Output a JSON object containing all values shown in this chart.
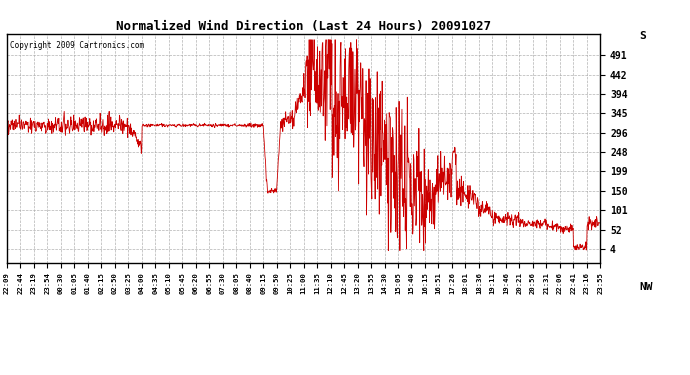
{
  "title": "Normalized Wind Direction (Last 24 Hours) 20091027",
  "copyright": "Copyright 2009 Cartronics.com",
  "line_color": "#cc0000",
  "background_color": "#ffffff",
  "plot_bg_color": "#ffffff",
  "grid_color": "#aaaaaa",
  "yticks": [
    4,
    52,
    101,
    150,
    199,
    248,
    296,
    345,
    394,
    442,
    491
  ],
  "ytick_labels": [
    "4",
    "52",
    "101",
    "150",
    "199",
    "248",
    "296",
    "345",
    "394",
    "442",
    "491"
  ],
  "y_top_label": "S",
  "y_bottom_label": "NW",
  "ylim": [
    -30,
    545
  ],
  "xtick_labels": [
    "22:09",
    "22:44",
    "23:19",
    "23:54",
    "00:30",
    "01:05",
    "01:40",
    "02:15",
    "02:50",
    "03:25",
    "04:00",
    "04:35",
    "05:10",
    "05:45",
    "06:20",
    "06:55",
    "07:30",
    "08:05",
    "08:40",
    "09:15",
    "09:50",
    "10:25",
    "11:00",
    "11:35",
    "12:10",
    "12:45",
    "13:20",
    "13:55",
    "14:30",
    "15:05",
    "15:40",
    "16:15",
    "16:51",
    "17:26",
    "18:01",
    "18:36",
    "19:11",
    "19:46",
    "20:21",
    "20:56",
    "21:31",
    "22:06",
    "22:41",
    "23:16",
    "23:55"
  ],
  "figsize": [
    6.9,
    3.75
  ],
  "dpi": 100
}
